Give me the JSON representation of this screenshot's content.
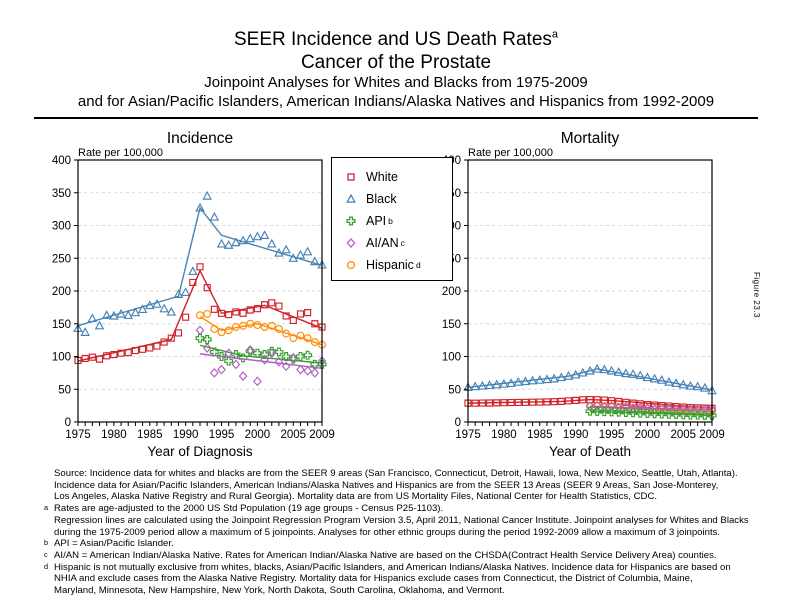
{
  "figure_label": "Figure 23.3",
  "title": {
    "line1": "SEER Incidence and US Death Rates",
    "line1_sup": "a",
    "line2": "Cancer of the Prostate",
    "line3": "Joinpoint Analyses for Whites and Blacks from 1975-2009",
    "line4": "and for Asian/Pacific Islanders, American Indians/Alaska Natives and Hispanics from 1992-2009"
  },
  "colors": {
    "white_series": "#cf2128",
    "black_series": "#4682b4",
    "api_series": "#33a02c",
    "aian_series": "#b05ec2",
    "hispanic_series": "#ff8c00",
    "gridline": "#d9d9d9"
  },
  "legend": {
    "items": [
      {
        "label": "White",
        "sup": "",
        "marker": "square",
        "color": "#cf2128"
      },
      {
        "label": "Black",
        "sup": "",
        "marker": "triangle",
        "color": "#4682b4"
      },
      {
        "label": "API",
        "sup": "b",
        "marker": "plus",
        "color": "#33a02c"
      },
      {
        "label": "AI/AN",
        "sup": "c",
        "marker": "diamond",
        "color": "#b05ec2"
      },
      {
        "label": "Hispanic",
        "sup": "d",
        "marker": "circle",
        "color": "#ff8c00"
      }
    ]
  },
  "chart_data": [
    {
      "type": "scatter",
      "title": "Incidence",
      "ylabel": "Rate per 100,000",
      "xlabel": "Year of Diagnosis",
      "ylim": [
        0,
        400
      ],
      "ytick_step": 50,
      "xlim": [
        1975,
        2009
      ],
      "xticks": [
        1975,
        1980,
        1985,
        1990,
        1995,
        2000,
        2005,
        2009
      ],
      "grid": "horizontal-dashed",
      "series": [
        {
          "name": "Black",
          "marker": "triangle",
          "color": "#4682b4",
          "x_start": 1975,
          "values": [
            143,
            137,
            158,
            147,
            163,
            162,
            165,
            163,
            167,
            172,
            178,
            180,
            173,
            168,
            195,
            198,
            230,
            327,
            345,
            313,
            272,
            270,
            274,
            277,
            280,
            283,
            285,
            272,
            258,
            263,
            250,
            255,
            260,
            245,
            240
          ],
          "trend": [
            [
              1975,
              147
            ],
            [
              1989,
              192
            ],
            [
              1992,
              327
            ],
            [
              1995,
              285
            ],
            [
              2009,
              239
            ]
          ]
        },
        {
          "name": "White",
          "marker": "square",
          "color": "#cf2128",
          "x_start": 1975,
          "values": [
            94,
            97,
            99,
            96,
            101,
            103,
            105,
            106,
            109,
            111,
            113,
            116,
            122,
            128,
            136,
            160,
            213,
            237,
            205,
            172,
            166,
            164,
            168,
            166,
            171,
            173,
            179,
            182,
            177,
            162,
            155,
            165,
            167,
            150,
            145
          ],
          "trend": [
            [
              1975,
              93
            ],
            [
              1988,
              126
            ],
            [
              1992,
              231
            ],
            [
              1995,
              166
            ],
            [
              2001,
              178
            ],
            [
              2009,
              143
            ]
          ]
        },
        {
          "name": "Hispanic",
          "marker": "circle",
          "color": "#ff8c00",
          "x_start": 1992,
          "values": [
            163,
            165,
            142,
            137,
            140,
            145,
            147,
            150,
            148,
            145,
            147,
            142,
            135,
            128,
            132,
            128,
            122,
            118
          ],
          "trend": [
            [
              1992,
              161
            ],
            [
              1995,
              140
            ],
            [
              2000,
              150
            ],
            [
              2009,
              118
            ]
          ]
        },
        {
          "name": "API",
          "marker": "plus",
          "color": "#33a02c",
          "x_start": 1992,
          "values": [
            128,
            126,
            107,
            100,
            93,
            103,
            98,
            108,
            105,
            103,
            108,
            107,
            100,
            96,
            100,
            102,
            88,
            88
          ],
          "trend": [
            [
              1992,
              117
            ],
            [
              1998,
              101
            ],
            [
              2009,
              90
            ]
          ]
        },
        {
          "name": "AI/AN",
          "marker": "diamond",
          "color": "#b05ec2",
          "x_start": 1992,
          "values": [
            140,
            113,
            75,
            80,
            105,
            88,
            70,
            110,
            62,
            95,
            105,
            92,
            85,
            98,
            80,
            78,
            75,
            93
          ],
          "trend": [
            [
              1992,
              104
            ],
            [
              2009,
              82
            ]
          ]
        }
      ]
    },
    {
      "type": "scatter",
      "title": "Mortality",
      "ylabel": "Rate per 100,000",
      "xlabel": "Year of Death",
      "ylim": [
        0,
        400
      ],
      "ytick_step": 50,
      "xlim": [
        1975,
        2009
      ],
      "xticks": [
        1975,
        1980,
        1985,
        1990,
        1995,
        2000,
        2005,
        2009
      ],
      "grid": "horizontal-dashed",
      "series": [
        {
          "name": "Black",
          "marker": "triangle",
          "color": "#4682b4",
          "x_start": 1975,
          "values": [
            53,
            54,
            55,
            56,
            57,
            58,
            59,
            61,
            62,
            63,
            64,
            65,
            66,
            68,
            70,
            72,
            75,
            78,
            81,
            80,
            78,
            76,
            74,
            73,
            71,
            68,
            66,
            64,
            61,
            59,
            57,
            55,
            54,
            52,
            48
          ],
          "trend": [
            [
              1975,
              53
            ],
            [
              1989,
              70
            ],
            [
              1993,
              81
            ],
            [
              2009,
              49
            ]
          ]
        },
        {
          "name": "White",
          "marker": "square",
          "color": "#cf2128",
          "x_start": 1975,
          "values": [
            28.8,
            28.7,
            28.9,
            29.0,
            29.2,
            29.5,
            29.7,
            29.8,
            30.0,
            30.2,
            30.5,
            30.7,
            31.0,
            31.5,
            32.3,
            33.0,
            33.9,
            34.2,
            34.1,
            33.5,
            32.5,
            31.3,
            30.0,
            28.8,
            27.7,
            26.6,
            25.8,
            25.1,
            24.3,
            23.5,
            22.8,
            22.1,
            21.6,
            21.2,
            20.8
          ],
          "trend": [
            [
              1975,
              28.8
            ],
            [
              1988,
              31.4
            ],
            [
              1992,
              34.2
            ],
            [
              1995,
              32.8
            ],
            [
              2009,
              20.8
            ]
          ]
        },
        {
          "name": "Hispanic",
          "marker": "circle",
          "color": "#ff8c00",
          "x_start": 1992,
          "values": [
            24.5,
            24.8,
            24.2,
            23.8,
            23.0,
            22.2,
            21.5,
            20.8,
            20.0,
            19.4,
            18.8,
            18.3,
            17.8,
            17.4,
            17.0,
            16.7,
            16.4,
            16.2
          ],
          "trend": [
            [
              1992,
              24.6
            ],
            [
              2009,
              16.2
            ]
          ]
        },
        {
          "name": "AI/AN",
          "marker": "diamond",
          "color": "#b05ec2",
          "x_start": 1992,
          "values": [
            24,
            25,
            23,
            24,
            22,
            23,
            21,
            22,
            21,
            20,
            21,
            20,
            19.5,
            20,
            19,
            19.5,
            19,
            18.5
          ],
          "trend": [
            [
              1992,
              23.5
            ],
            [
              2009,
              18.8
            ]
          ]
        },
        {
          "name": "API",
          "marker": "plus",
          "color": "#33a02c",
          "x_start": 1992,
          "values": [
            16.5,
            16.2,
            15.8,
            15.4,
            15.0,
            14.5,
            14.0,
            13.5,
            13.0,
            12.6,
            12.2,
            11.8,
            11.4,
            11.0,
            10.7,
            10.4,
            10.1,
            9.8
          ],
          "trend": [
            [
              1992,
              16.4
            ],
            [
              2009,
              9.9
            ]
          ]
        }
      ]
    }
  ],
  "footnotes": [
    {
      "sup": "",
      "text": "Source:  Incidence data for whites and blacks are from the SEER 9 areas (San Francisco, Connecticut, Detroit, Hawaii, Iowa, New Mexico, Seattle, Utah, Atlanta)."
    },
    {
      "sup": "",
      "text": "Incidence data for Asian/Pacific Islanders, American Indians/Alaska Natives and Hispanics are from the SEER 13 Areas (SEER 9 Areas, San Jose-Monterey,"
    },
    {
      "sup": "",
      "text": "Los Angeles, Alaska Native Registry and Rural Georgia).  Mortality data are from US Mortality Files, National Center for Health Statistics, CDC."
    },
    {
      "sup": "a",
      "text": "Rates are age-adjusted to the 2000 US Std Population (19 age groups - Census P25-1103)."
    },
    {
      "sup": "",
      "text": "Regression lines are calculated using the Joinpoint Regression Program Version 3.5, April 2011, National Cancer Institute.  Joinpoint analyses for Whites and Blacks"
    },
    {
      "sup": "",
      "text": "during the 1975-2009 period allow a maximum of 5 joinpoints.  Analyses for other ethnic groups during the period 1992-2009 allow a maximum of 3 joinpoints."
    },
    {
      "sup": "b",
      "text": "API = Asian/Pacific Islander."
    },
    {
      "sup": "c",
      "text": "AI/AN = American Indian/Alaska Native.  Rates for American Indian/Alaska Native are based on the CHSDA(Contract Health Service Delivery Area) counties."
    },
    {
      "sup": "d",
      "text": "Hispanic is not mutually exclusive from whites, blacks, Asian/Pacific Islanders, and American Indians/Alaska Natives.  Incidence data for Hispanics are based on"
    },
    {
      "sup": "",
      "text": "NHIA and exclude cases from the Alaska Native Registry.  Mortality data for Hispanics exclude cases from Connecticut, the District of Columbia, Maine,"
    },
    {
      "sup": "",
      "text": "Maryland, Minnesota, New Hampshire, New York, North Dakota, South Carolina, Oklahoma, and Vermont."
    }
  ]
}
